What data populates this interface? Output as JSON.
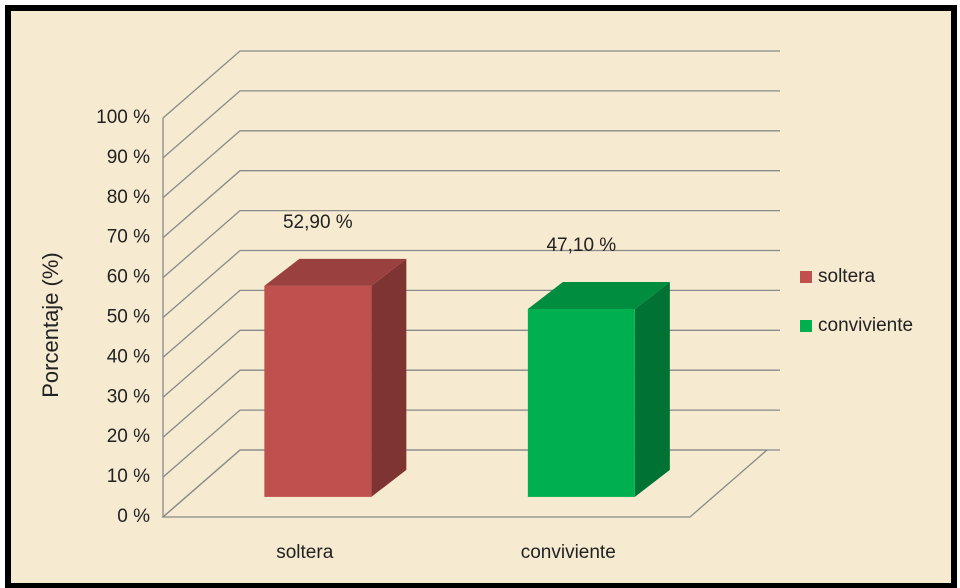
{
  "chart_data": {
    "type": "bar3d",
    "categories": [
      "soltera",
      "conviviente"
    ],
    "series": [
      {
        "name": "soltera",
        "color": "#c0504d",
        "values": [
          52.9,
          null
        ],
        "value_labels": [
          "52,90 %",
          null
        ]
      },
      {
        "name": "conviviente",
        "color": "#00b050",
        "values": [
          null,
          47.1
        ],
        "value_labels": [
          null,
          "47,10 %"
        ]
      }
    ],
    "ylabel": "Porcentaje (%)",
    "ylim": [
      0,
      100
    ],
    "yticks": [
      {
        "value": 0,
        "label": "0 %"
      },
      {
        "value": 10,
        "label": "10 %"
      },
      {
        "value": 20,
        "label": "20 %"
      },
      {
        "value": 30,
        "label": "30 %"
      },
      {
        "value": 40,
        "label": "40 %"
      },
      {
        "value": 50,
        "label": "50 %"
      },
      {
        "value": 60,
        "label": "60 %"
      },
      {
        "value": 70,
        "label": "70 %"
      },
      {
        "value": 80,
        "label": "80 %"
      },
      {
        "value": 90,
        "label": "90 %"
      },
      {
        "value": 100,
        "label": "100 %"
      }
    ],
    "grid": true,
    "legend": "right"
  }
}
